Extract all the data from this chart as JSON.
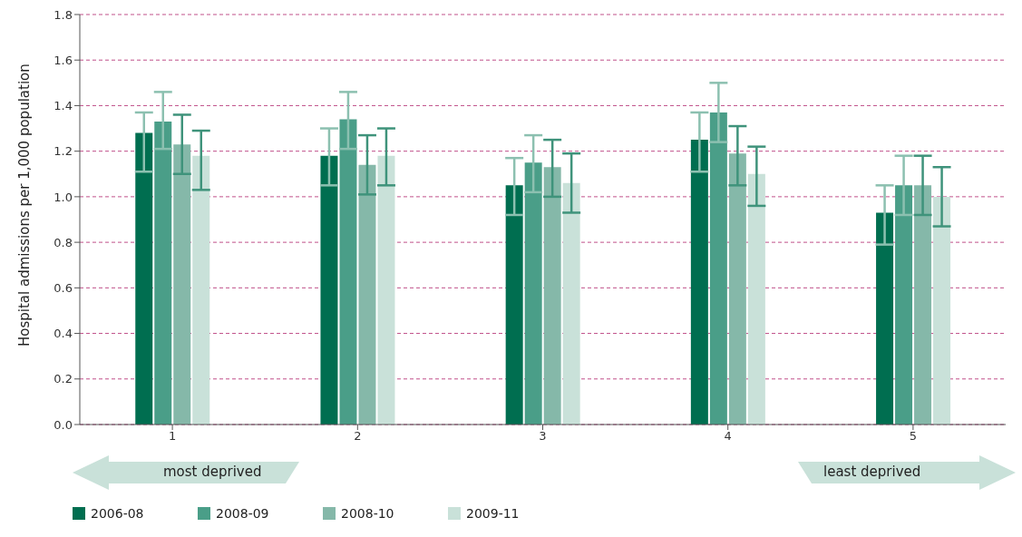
{
  "chart_data": {
    "type": "bar",
    "ylabel": "Hospital admissions per 1,000 population",
    "categories": [
      "1",
      "2",
      "3",
      "4",
      "5"
    ],
    "series": [
      {
        "name": "2006-08",
        "color": "#006e50",
        "values": [
          1.28,
          1.18,
          1.05,
          1.25,
          0.93
        ],
        "errors": [
          [
            1.11,
            1.37
          ],
          [
            1.05,
            1.3
          ],
          [
            0.92,
            1.17
          ],
          [
            1.11,
            1.37
          ],
          [
            0.79,
            1.05
          ]
        ]
      },
      {
        "name": "2008-09",
        "color": "#4a9e88",
        "values": [
          1.33,
          1.34,
          1.15,
          1.37,
          1.05
        ],
        "errors": [
          [
            1.21,
            1.46
          ],
          [
            1.21,
            1.46
          ],
          [
            1.02,
            1.27
          ],
          [
            1.24,
            1.5
          ],
          [
            0.92,
            1.18
          ]
        ]
      },
      {
        "name": "2008-10",
        "color": "#85b8a9",
        "values": [
          1.23,
          1.14,
          1.13,
          1.19,
          1.05
        ],
        "errors": [
          [
            1.1,
            1.36
          ],
          [
            1.01,
            1.27
          ],
          [
            1.0,
            1.25
          ],
          [
            1.05,
            1.31
          ],
          [
            0.92,
            1.18
          ]
        ]
      },
      {
        "name": "2009-11",
        "color": "#c9e1d9",
        "values": [
          1.18,
          1.18,
          1.06,
          1.1,
          1.0
        ],
        "errors": [
          [
            1.03,
            1.29
          ],
          [
            1.05,
            1.3
          ],
          [
            0.93,
            1.19
          ],
          [
            0.96,
            1.22
          ],
          [
            0.87,
            1.13
          ]
        ]
      }
    ],
    "ylim": [
      0,
      1.8
    ],
    "yticks": [
      {
        "value": 0,
        "label": "0.0"
      },
      0.2,
      0.4,
      0.6,
      0.8,
      {
        "value": 1,
        "label": "1.0"
      },
      1.2,
      1.4,
      1.6,
      1.8
    ],
    "grid": "y",
    "legend": "bottom left",
    "annotations": [
      "most deprived",
      "least deprived"
    ]
  }
}
